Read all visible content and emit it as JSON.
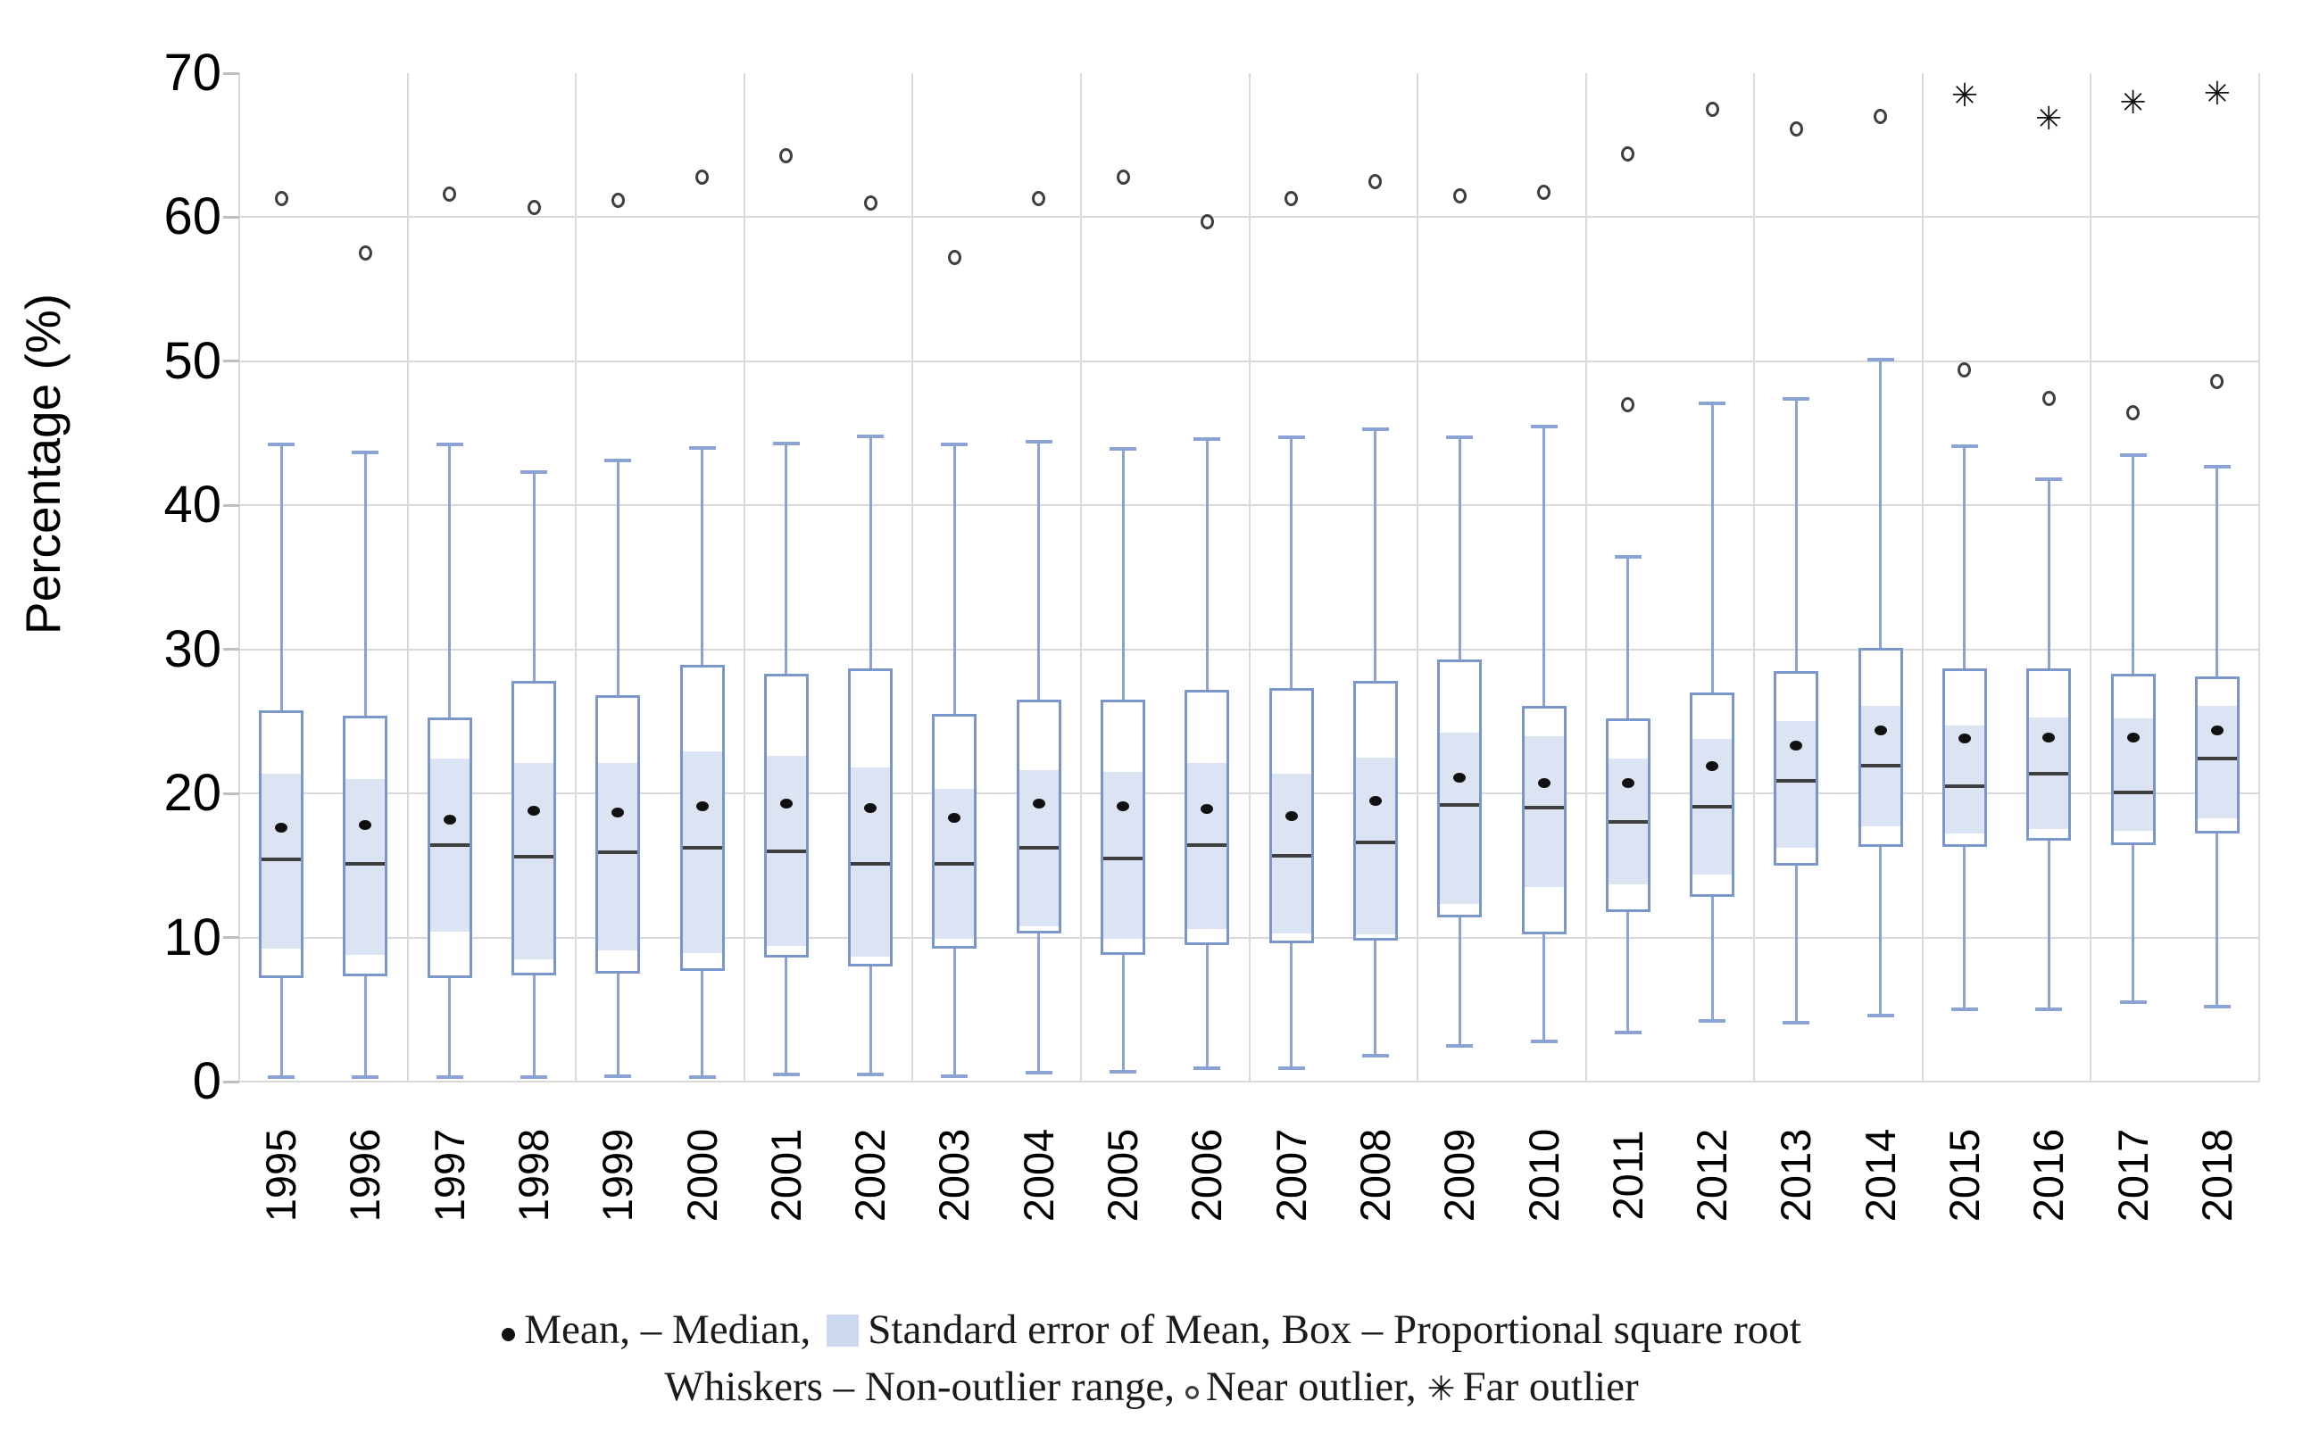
{
  "y_axis": {
    "title": "Percentage (%)",
    "ticks": [
      0,
      10,
      20,
      30,
      40,
      50,
      60,
      70
    ],
    "min": 0,
    "max": 70
  },
  "legend": {
    "line1_part1": "Mean, – Median,",
    "line1_part2": "Standard error of Mean, Box – Proportional square root",
    "line2_part1": "Whiskers – Non-outlier range,",
    "line2_part2": "Near outlier,",
    "line2_part3": "Far outlier"
  },
  "colors": {
    "box_border": "#7b96cb",
    "whisker": "#8aa3d4",
    "se_fill": "#dce4f3",
    "median": "#3f3f3f",
    "mean": "#111111",
    "outlier": "#3f3f3f",
    "gridline": "#d9d9d9",
    "tick": "#bfbfbf"
  },
  "chart_data": {
    "type": "box",
    "title": "",
    "xlabel": "",
    "ylabel": "Percentage (%)",
    "ylim": [
      0,
      70
    ],
    "grid": true,
    "legend_position": "bottom",
    "categories": [
      "1995",
      "1996",
      "1997",
      "1998",
      "1999",
      "2000",
      "2001",
      "2002",
      "2003",
      "2004",
      "2005",
      "2006",
      "2007",
      "2008",
      "2009",
      "2010",
      "2011",
      "2012",
      "2013",
      "2014",
      "2015",
      "2016",
      "2017",
      "2018"
    ],
    "series": [
      {
        "year": "1995",
        "whisker_low": 0.3,
        "q1": 7.2,
        "se_low": 9.2,
        "median": 15.4,
        "mean": 17.6,
        "se_high": 21.4,
        "q3": 25.8,
        "whisker_high": 44.2,
        "near_outliers": [
          61.3
        ],
        "far_outliers": []
      },
      {
        "year": "1996",
        "whisker_low": 0.3,
        "q1": 7.3,
        "se_low": 8.8,
        "median": 15.1,
        "mean": 17.8,
        "se_high": 21.0,
        "q3": 25.4,
        "whisker_high": 43.7,
        "near_outliers": [
          57.5
        ],
        "far_outliers": []
      },
      {
        "year": "1997",
        "whisker_low": 0.3,
        "q1": 7.2,
        "se_low": 10.4,
        "median": 16.4,
        "mean": 18.2,
        "se_high": 22.4,
        "q3": 25.3,
        "whisker_high": 44.2,
        "near_outliers": [
          61.6
        ],
        "far_outliers": []
      },
      {
        "year": "1998",
        "whisker_low": 0.3,
        "q1": 7.4,
        "se_low": 8.5,
        "median": 15.6,
        "mean": 18.8,
        "se_high": 22.1,
        "q3": 27.8,
        "whisker_high": 42.3,
        "near_outliers": [
          60.7
        ],
        "far_outliers": []
      },
      {
        "year": "1999",
        "whisker_low": 0.4,
        "q1": 7.5,
        "se_low": 9.1,
        "median": 15.9,
        "mean": 18.7,
        "se_high": 22.1,
        "q3": 26.8,
        "whisker_high": 43.1,
        "near_outliers": [
          61.2
        ],
        "far_outliers": []
      },
      {
        "year": "2000",
        "whisker_low": 0.3,
        "q1": 7.7,
        "se_low": 8.9,
        "median": 16.2,
        "mean": 19.1,
        "se_high": 22.9,
        "q3": 28.9,
        "whisker_high": 44.0,
        "near_outliers": [
          62.8
        ],
        "far_outliers": []
      },
      {
        "year": "2001",
        "whisker_low": 0.5,
        "q1": 8.6,
        "se_low": 9.4,
        "median": 16.0,
        "mean": 19.3,
        "se_high": 22.6,
        "q3": 28.3,
        "whisker_high": 44.3,
        "near_outliers": [
          64.3
        ],
        "far_outliers": []
      },
      {
        "year": "2002",
        "whisker_low": 0.5,
        "q1": 8.0,
        "se_low": 8.7,
        "median": 15.1,
        "mean": 19.0,
        "se_high": 21.8,
        "q3": 28.7,
        "whisker_high": 44.8,
        "near_outliers": [
          61.0
        ],
        "far_outliers": []
      },
      {
        "year": "2003",
        "whisker_low": 0.4,
        "q1": 9.2,
        "se_low": 9.9,
        "median": 15.1,
        "mean": 18.3,
        "se_high": 20.3,
        "q3": 25.5,
        "whisker_high": 44.2,
        "near_outliers": [
          57.2
        ],
        "far_outliers": []
      },
      {
        "year": "2004",
        "whisker_low": 0.6,
        "q1": 10.3,
        "se_low": 10.8,
        "median": 16.2,
        "mean": 19.3,
        "se_high": 21.6,
        "q3": 26.5,
        "whisker_high": 44.4,
        "near_outliers": [
          61.3
        ],
        "far_outliers": []
      },
      {
        "year": "2005",
        "whisker_low": 0.7,
        "q1": 8.8,
        "se_low": 9.9,
        "median": 15.5,
        "mean": 19.1,
        "se_high": 21.5,
        "q3": 26.5,
        "whisker_high": 43.9,
        "near_outliers": [
          62.8
        ],
        "far_outliers": []
      },
      {
        "year": "2006",
        "whisker_low": 0.9,
        "q1": 9.5,
        "se_low": 10.6,
        "median": 16.4,
        "mean": 18.9,
        "se_high": 22.1,
        "q3": 27.2,
        "whisker_high": 44.6,
        "near_outliers": [
          59.7
        ],
        "far_outliers": []
      },
      {
        "year": "2007",
        "whisker_low": 0.9,
        "q1": 9.6,
        "se_low": 10.3,
        "median": 15.7,
        "mean": 18.4,
        "se_high": 21.4,
        "q3": 27.3,
        "whisker_high": 44.7,
        "near_outliers": [
          61.3
        ],
        "far_outliers": []
      },
      {
        "year": "2008",
        "whisker_low": 1.8,
        "q1": 9.8,
        "se_low": 10.2,
        "median": 16.6,
        "mean": 19.5,
        "se_high": 22.5,
        "q3": 27.8,
        "whisker_high": 45.3,
        "near_outliers": [
          62.5
        ],
        "far_outliers": []
      },
      {
        "year": "2009",
        "whisker_low": 2.5,
        "q1": 11.4,
        "se_low": 12.3,
        "median": 19.2,
        "mean": 21.1,
        "se_high": 24.2,
        "q3": 29.3,
        "whisker_high": 44.7,
        "near_outliers": [
          61.5
        ],
        "far_outliers": []
      },
      {
        "year": "2010",
        "whisker_low": 2.8,
        "q1": 10.2,
        "se_low": 13.5,
        "median": 19.0,
        "mean": 20.7,
        "se_high": 24.0,
        "q3": 26.1,
        "whisker_high": 45.5,
        "near_outliers": [
          61.7
        ],
        "far_outliers": []
      },
      {
        "year": "2011",
        "whisker_low": 3.4,
        "q1": 11.8,
        "se_low": 13.7,
        "median": 18.0,
        "mean": 20.7,
        "se_high": 22.4,
        "q3": 25.2,
        "whisker_high": 36.4,
        "near_outliers": [
          64.4,
          47.0
        ],
        "far_outliers": []
      },
      {
        "year": "2012",
        "whisker_low": 4.2,
        "q1": 12.8,
        "se_low": 14.4,
        "median": 19.1,
        "mean": 21.9,
        "se_high": 23.8,
        "q3": 27.0,
        "whisker_high": 47.1,
        "near_outliers": [
          67.5
        ],
        "far_outliers": []
      },
      {
        "year": "2013",
        "whisker_low": 4.1,
        "q1": 15.0,
        "se_low": 16.2,
        "median": 20.9,
        "mean": 23.3,
        "se_high": 25.0,
        "q3": 28.5,
        "whisker_high": 47.4,
        "near_outliers": [
          66.1
        ],
        "far_outliers": []
      },
      {
        "year": "2014",
        "whisker_low": 4.6,
        "q1": 16.3,
        "se_low": 17.7,
        "median": 21.9,
        "mean": 24.4,
        "se_high": 26.1,
        "q3": 30.1,
        "whisker_high": 50.1,
        "near_outliers": [
          67.0
        ],
        "far_outliers": []
      },
      {
        "year": "2015",
        "whisker_low": 5.0,
        "q1": 16.3,
        "se_low": 17.2,
        "median": 20.5,
        "mean": 23.8,
        "se_high": 24.7,
        "q3": 28.7,
        "whisker_high": 44.1,
        "near_outliers": [
          49.4
        ],
        "far_outliers": [
          68.4
        ]
      },
      {
        "year": "2016",
        "whisker_low": 5.0,
        "q1": 16.7,
        "se_low": 17.5,
        "median": 21.4,
        "mean": 23.9,
        "se_high": 25.3,
        "q3": 28.7,
        "whisker_high": 41.8,
        "near_outliers": [
          47.4
        ],
        "far_outliers": [
          66.8
        ]
      },
      {
        "year": "2017",
        "whisker_low": 5.5,
        "q1": 16.4,
        "se_low": 17.4,
        "median": 20.1,
        "mean": 23.9,
        "se_high": 25.2,
        "q3": 28.3,
        "whisker_high": 43.5,
        "near_outliers": [
          46.4
        ],
        "far_outliers": [
          67.9
        ]
      },
      {
        "year": "2018",
        "whisker_low": 5.2,
        "q1": 17.2,
        "se_low": 18.3,
        "median": 22.4,
        "mean": 24.4,
        "se_high": 26.1,
        "q3": 28.1,
        "whisker_high": 42.7,
        "near_outliers": [
          48.6
        ],
        "far_outliers": [
          68.5
        ]
      }
    ]
  }
}
